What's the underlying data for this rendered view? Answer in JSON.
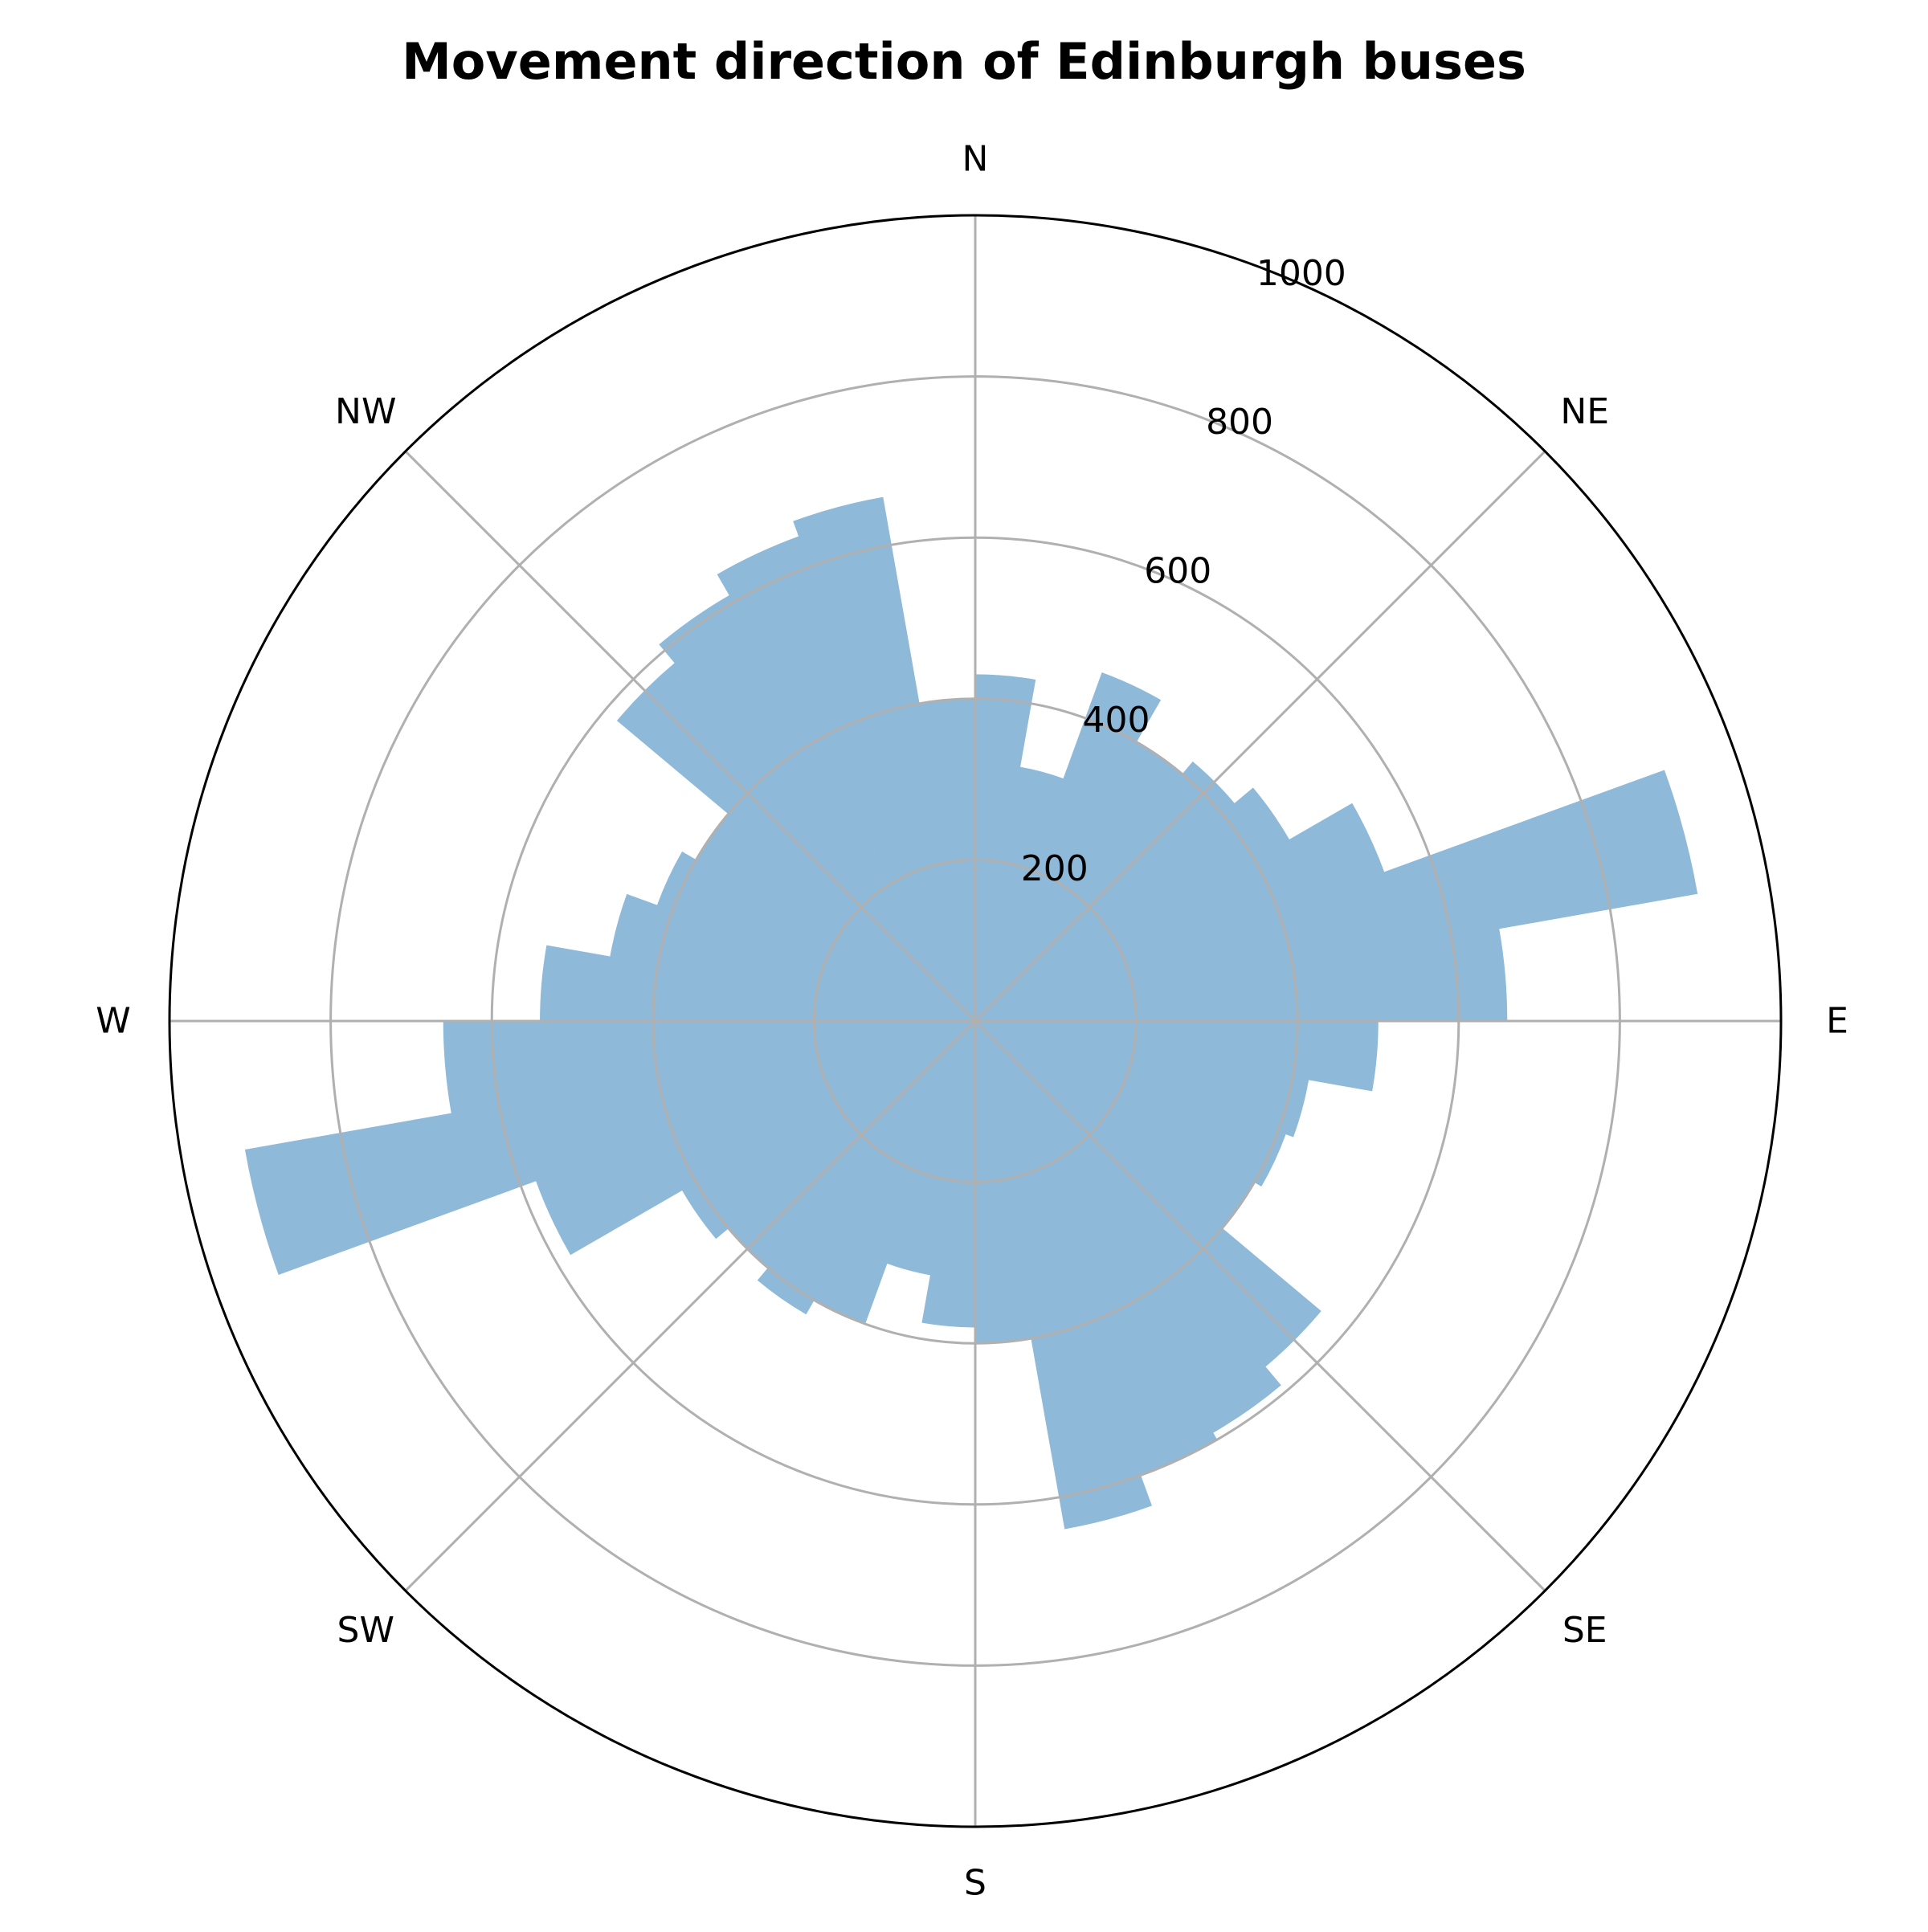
{
  "chart_data": {
    "type": "bar",
    "subtype": "polar-rose",
    "title": "Movement direction of Edinburgh buses",
    "direction_labels": [
      "N",
      "NE",
      "E",
      "SE",
      "S",
      "SW",
      "W",
      "NW"
    ],
    "radial_ticks": [
      200,
      400,
      600,
      800,
      1000
    ],
    "rlim": [
      0,
      1000
    ],
    "angle_origin": "N",
    "angle_direction": "clockwise",
    "bin_width_deg": 10,
    "bins_start_deg": [
      0,
      10,
      20,
      30,
      40,
      50,
      60,
      70,
      80,
      90,
      100,
      110,
      120,
      130,
      140,
      150,
      160,
      170,
      180,
      190,
      200,
      210,
      220,
      230,
      240,
      250,
      260,
      270,
      280,
      290,
      300,
      310,
      320,
      330,
      340,
      350
    ],
    "values": [
      430,
      320,
      460,
      400,
      420,
      450,
      540,
      910,
      660,
      500,
      420,
      410,
      400,
      560,
      590,
      600,
      640,
      400,
      380,
      320,
      400,
      420,
      400,
      420,
      580,
      920,
      660,
      540,
      460,
      420,
      400,
      580,
      610,
      640,
      660,
      400
    ],
    "color": "#8fb9d8",
    "grid": true
  }
}
